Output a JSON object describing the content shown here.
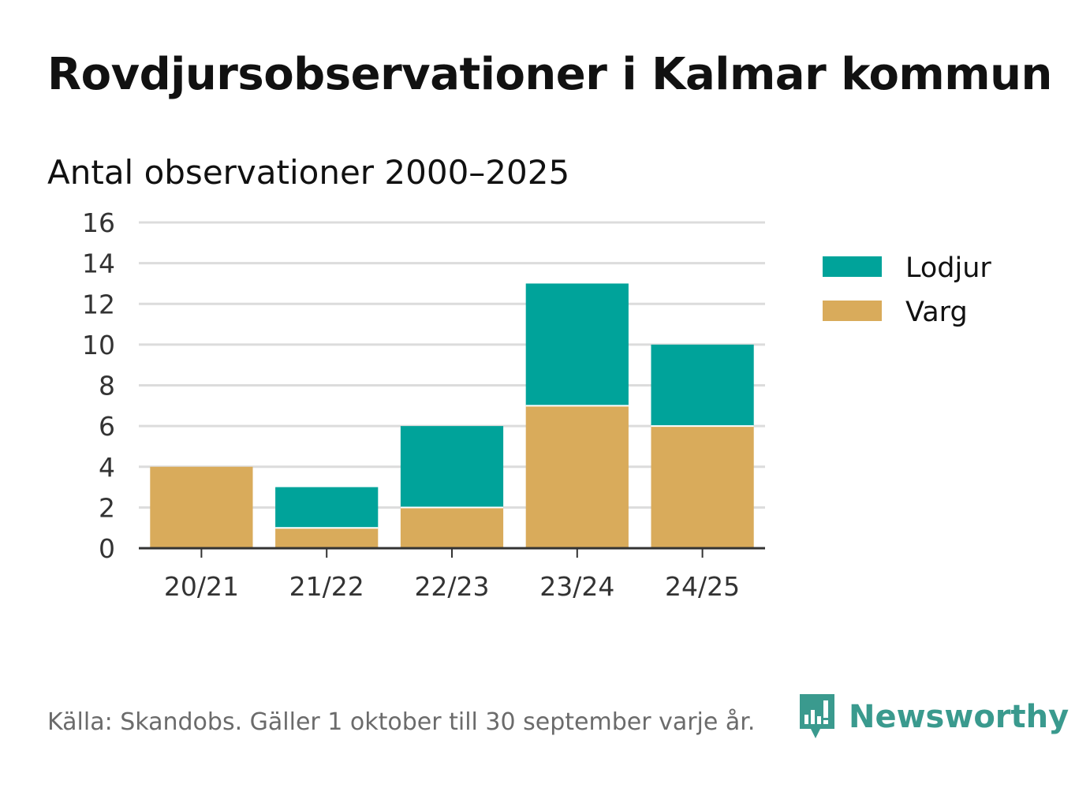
{
  "title": "Rovdjursobservationer i Kalmar kommun",
  "subtitle": "Antal observationer 2000–2025",
  "chart_data": {
    "type": "bar",
    "stacked": true,
    "categories": [
      "20/21",
      "21/22",
      "22/23",
      "23/24",
      "24/25"
    ],
    "series": [
      {
        "name": "Varg",
        "values": [
          4,
          1,
          2,
          7,
          6
        ],
        "color": "#d9ab5b"
      },
      {
        "name": "Lodjur",
        "values": [
          0,
          2,
          4,
          6,
          4
        ],
        "color": "#00a39a"
      }
    ],
    "ylim": [
      0,
      16
    ],
    "yticks": [
      0,
      2,
      4,
      6,
      8,
      10,
      12,
      14,
      16
    ],
    "grid": true,
    "legend": "right",
    "legend_order": [
      "Lodjur",
      "Varg"
    ]
  },
  "source": "Källa: Skandobs. Gäller 1 oktober till 30 september varje år.",
  "brand": {
    "name": "Newsworthy",
    "color": "#3a9a8e"
  }
}
